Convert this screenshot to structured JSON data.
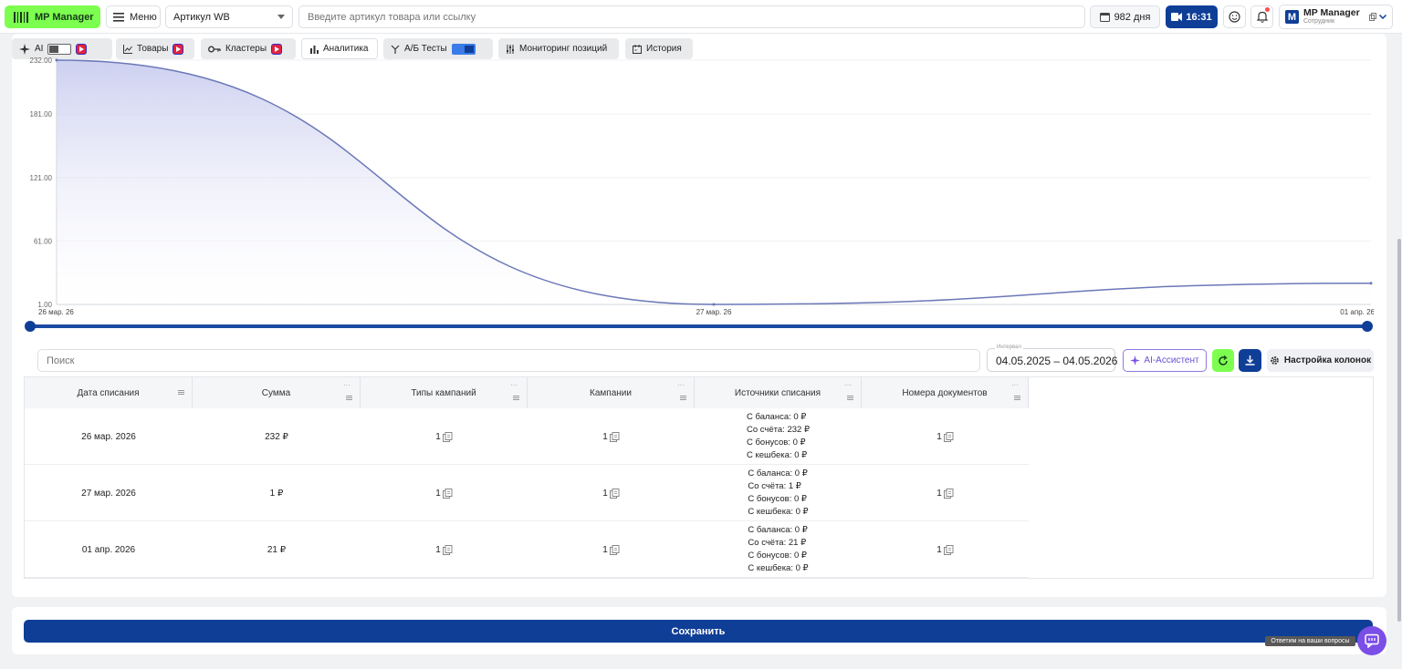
{
  "header": {
    "logo_text": "MP Manager",
    "menu_label": "Меню",
    "article_select": "Артикул WB",
    "search_placeholder": "Введите артикул товара или ссылку",
    "days_label": "982 дня",
    "time_label": "16:31",
    "account": {
      "avatar_letter": "M",
      "name": "MP Manager",
      "role": "Сотрудник"
    }
  },
  "tabs": [
    {
      "label": "AI"
    },
    {
      "label": "Товары"
    },
    {
      "label": "Кластеры"
    },
    {
      "label": "Аналитика"
    },
    {
      "label": "А/Б Тесты"
    },
    {
      "label": "Мониторинг позиций"
    },
    {
      "label": "История"
    }
  ],
  "chart_data": {
    "type": "area",
    "x": [
      "26 мар. 26",
      "27 мар. 26",
      "01 апр. 26"
    ],
    "values": [
      232,
      1,
      21
    ],
    "x_tick_labels": [
      "26 мар. 26",
      "27 мар. 26",
      "01 апр. 26"
    ],
    "y_tick_labels": [
      "1.00",
      "61.00",
      "121.00",
      "181.00",
      "232.00"
    ],
    "ylim": [
      1,
      232
    ],
    "title": "",
    "xlabel": "",
    "ylabel": "",
    "line_color": "#6b78b8",
    "fill_color": "#c7cbee",
    "grid": true
  },
  "toolbar": {
    "search_placeholder": "Поиск",
    "date_label": "Интервал",
    "date_range": "04.05.2025 – 04.05.2026",
    "ai_label": "AI-Ассистент",
    "columns_label": "Настройка колонок"
  },
  "table": {
    "columns": [
      "Дата списания",
      "Сумма",
      "Типы кампаний",
      "Кампании",
      "Источники списания",
      "Номера документов"
    ],
    "rows": [
      {
        "date": "26 мар. 2026",
        "sum": "232 ₽",
        "types": "1",
        "campaigns": "1",
        "sources": [
          "С баланса: 0 ₽",
          "Со счёта: 232 ₽",
          "С бонусов: 0 ₽",
          "С кешбека: 0 ₽"
        ],
        "docs": "1"
      },
      {
        "date": "27 мар. 2026",
        "sum": "1 ₽",
        "types": "1",
        "campaigns": "1",
        "sources": [
          "С баланса: 0 ₽",
          "Со счёта: 1 ₽",
          "С бонусов: 0 ₽",
          "С кешбека: 0 ₽"
        ],
        "docs": "1"
      },
      {
        "date": "01 апр. 2026",
        "sum": "21 ₽",
        "types": "1",
        "campaigns": "1",
        "sources": [
          "С баланса: 0 ₽",
          "Со счёта: 21 ₽",
          "С бонусов: 0 ₽",
          "С кешбека: 0 ₽"
        ],
        "docs": "1"
      }
    ]
  },
  "save_label": "Сохранить",
  "help_tooltip": "Ответим на ваши вопросы",
  "colors": {
    "brand_green": "#7dff4f",
    "brand_blue": "#0f3e97",
    "accent_purple": "#7b4ee6"
  }
}
